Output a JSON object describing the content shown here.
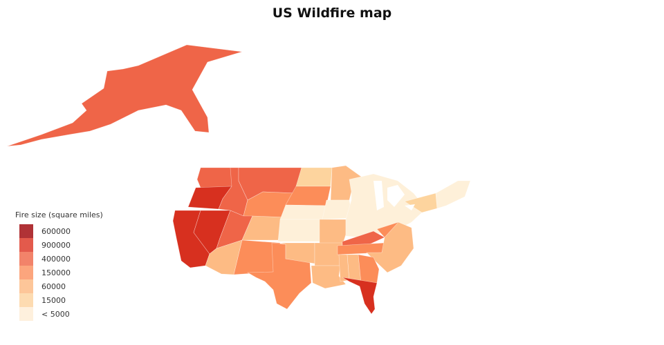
{
  "title": "US Wildfire map",
  "legend": {
    "title": "Fire size (square miles)",
    "items": [
      {
        "label": "600000",
        "color": "#b03236"
      },
      {
        "label": "900000",
        "color": "#e35a4c"
      },
      {
        "label": "400000",
        "color": "#f2836a"
      },
      {
        "label": "150000",
        "color": "#fca57d"
      },
      {
        "label": "60000",
        "color": "#fdc699"
      },
      {
        "label": "15000",
        "color": "#fddbb1"
      },
      {
        "label": "< 5000",
        "color": "#fef0dd"
      }
    ]
  },
  "state_fills": {
    "AK": "#ef6548",
    "WA": "#ef6548",
    "OR": "#d7301f",
    "CA": "#d7301f",
    "NV": "#d7301f",
    "ID": "#ef6548",
    "MT": "#ef6548",
    "WY": "#fc8d59",
    "UT": "#ef6548",
    "CO": "#fdbb84",
    "AZ": "#fdbb84",
    "NM": "#fc8d59",
    "TX": "#fc8d59",
    "OK": "#fdbb84",
    "ND": "#fdd49e",
    "SD": "#fc8d59",
    "NE": "#fef0d9",
    "KS": "#fef0d9",
    "MN": "#fdbb84",
    "IA": "#fef0d9",
    "MO": "#fdbb84",
    "AR": "#fdbb84",
    "LA": "#fdbb84",
    "GreatLakes": "#fef0d9",
    "NY": "#fdd49e",
    "NewEngland": "#fef0d9",
    "KY": "#ef6548",
    "WV": "#fc8d59",
    "TN": "#fc8d59",
    "VA_NC_SC": "#fdbb84",
    "MS": "#fdbb84",
    "AL": "#fdbb84",
    "GA": "#fc8d59",
    "FL": "#d7301f"
  }
}
